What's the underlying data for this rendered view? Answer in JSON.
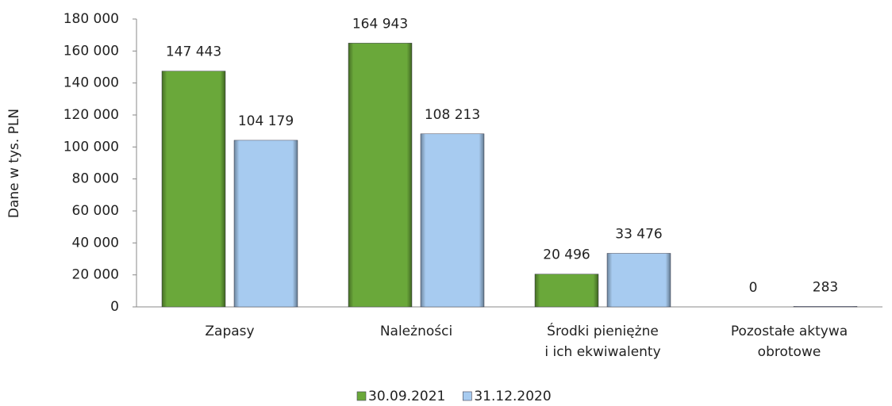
{
  "chart_data": {
    "type": "bar",
    "y_label": "Dane w tys. PLN",
    "categories": [
      "Zapasy",
      "Należności",
      "Środki pieniężne\ni ich ekwiwalenty",
      "Pozostałe aktywa\nobrotowe"
    ],
    "series": [
      {
        "name": "30.09.2021",
        "color": "#6aa83a",
        "values": [
          147443,
          164943,
          20496,
          0
        ],
        "value_labels": [
          "147 443",
          "164 943",
          "20 496",
          "0"
        ]
      },
      {
        "name": "31.12.2020",
        "color": "#a7cbf0",
        "values": [
          104179,
          108213,
          33476,
          283
        ],
        "value_labels": [
          "104 179",
          "108 213",
          "33 476",
          "283"
        ]
      }
    ],
    "ylim": [
      0,
      180000
    ],
    "yticks": [
      {
        "value": 0,
        "label": "0"
      },
      {
        "value": 20000,
        "label": "20 000"
      },
      {
        "value": 40000,
        "label": "40 000"
      },
      {
        "value": 60000,
        "label": "60 000"
      },
      {
        "value": 80000,
        "label": "80 000"
      },
      {
        "value": 100000,
        "label": "100 000"
      },
      {
        "value": 120000,
        "label": "120 000"
      },
      {
        "value": 140000,
        "label": "140 000"
      },
      {
        "value": 160000,
        "label": "160 000"
      },
      {
        "value": 180000,
        "label": "180 000"
      }
    ],
    "legend": "bottom"
  }
}
